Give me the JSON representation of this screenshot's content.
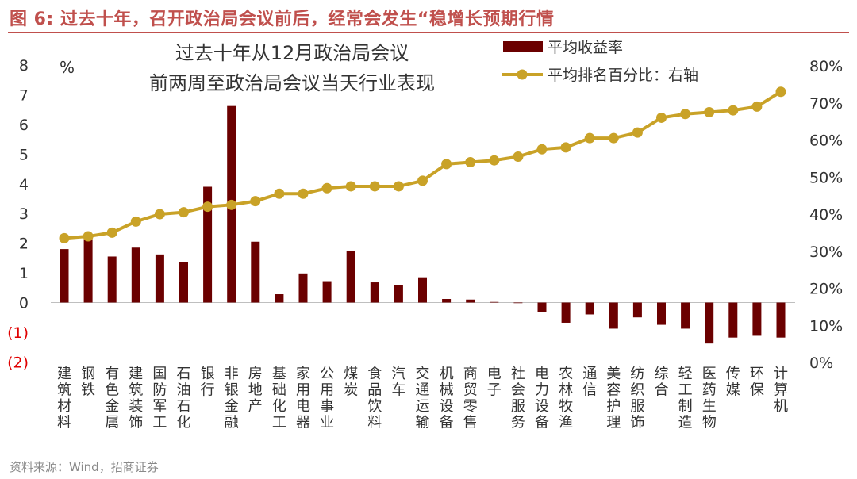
{
  "header": {
    "title": "图 6:  过去十年，召开政治局会议前后，经常会发生“稳增长预期行情"
  },
  "colors": {
    "title": "#c0504d",
    "bar": "#6b0000",
    "line": "#c9a227",
    "axis_text": "#333333",
    "negative_tick": "#e00000"
  },
  "chart_data": {
    "type": "bar",
    "title_lines": [
      "过去十年从12月政治局会议",
      "前两周至政治局会议当天行业表现"
    ],
    "unit_label": "%",
    "categories": [
      "建筑材料",
      "钢铁",
      "有色金属",
      "建筑装饰",
      "国防军工",
      "石油石化",
      "银行",
      "非银金融",
      "房地产",
      "基础化工",
      "家用电器",
      "公用事业",
      "煤炭",
      "食品饮料",
      "汽车",
      "交通运输",
      "机械设备",
      "商贸零售",
      "电子",
      "社会服务",
      "电力设备",
      "农林牧渔",
      "通信",
      "美容护理",
      "纺织服饰",
      "综合",
      "轻工制造",
      "医药生物",
      "传媒",
      "环保",
      "计算机"
    ],
    "series": [
      {
        "name": "平均收益率",
        "type": "bar",
        "axis": "left",
        "values": [
          1.8,
          2.2,
          1.55,
          1.85,
          1.62,
          1.35,
          3.9,
          6.62,
          2.05,
          0.28,
          0.98,
          0.72,
          1.75,
          0.68,
          0.58,
          0.85,
          0.12,
          0.1,
          0.02,
          -0.02,
          -0.32,
          -0.68,
          -0.4,
          -0.88,
          -0.5,
          -0.75,
          -0.88,
          -1.38,
          -1.18,
          -1.12,
          -1.18
        ]
      },
      {
        "name": "平均排名百分比：右轴",
        "type": "line",
        "axis": "right",
        "values": [
          33.5,
          34,
          35,
          38,
          40,
          40.5,
          42,
          42.5,
          43.5,
          45.5,
          45.5,
          47,
          47.5,
          47.5,
          47.5,
          49,
          53.5,
          54,
          54.5,
          55.5,
          57.5,
          58,
          60.5,
          60.5,
          62,
          66,
          67,
          67.5,
          68,
          69,
          73
        ]
      }
    ],
    "left_axis": {
      "ylim": [
        -2,
        8
      ],
      "ticks": [
        -2,
        -1,
        0,
        1,
        2,
        3,
        4,
        5,
        6,
        7,
        8
      ],
      "tick_labels": [
        "(2)",
        "(1)",
        "0",
        "1",
        "2",
        "3",
        "4",
        "5",
        "6",
        "7",
        "8"
      ]
    },
    "right_axis": {
      "ylim": [
        0,
        80
      ],
      "ticks": [
        0,
        10,
        20,
        30,
        40,
        50,
        60,
        70,
        80
      ],
      "tick_labels": [
        "0%",
        "10%",
        "20%",
        "30%",
        "40%",
        "50%",
        "60%",
        "70%",
        "80%"
      ]
    },
    "legend": {
      "position": "top-right",
      "entries": [
        "平均收益率",
        "平均排名百分比：右轴"
      ]
    }
  },
  "footer": {
    "source": "资料来源：Wind，招商证券"
  }
}
